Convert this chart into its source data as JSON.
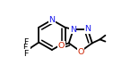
{
  "bg_color": "#ffffff",
  "n_color": "#1a1aee",
  "o_color": "#cc2200",
  "lw": 1.3,
  "fs": 6.8,
  "figsize": [
    1.55,
    0.82
  ],
  "dpi": 100,
  "xlim": [
    0.02,
    0.98
  ],
  "ylim": [
    0.05,
    0.95
  ]
}
